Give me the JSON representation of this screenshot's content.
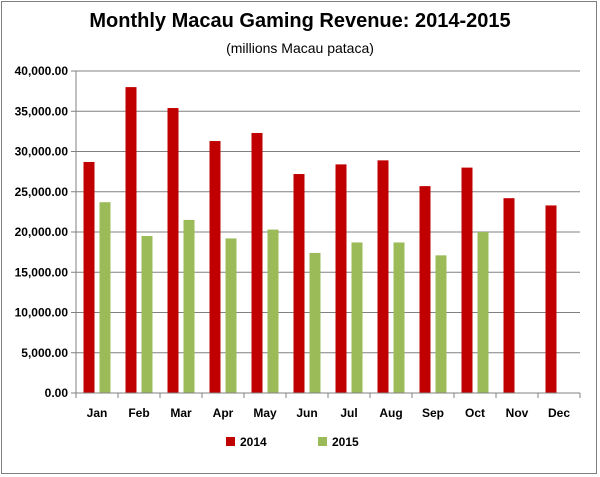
{
  "chart_data": {
    "type": "bar",
    "title": "Monthly Macau Gaming Revenue: 2014-2015",
    "subtitle": "(millions Macau pataca)",
    "xlabel": "",
    "ylabel": "",
    "categories": [
      "Jan",
      "Feb",
      "Mar",
      "Apr",
      "May",
      "Jun",
      "Jul",
      "Aug",
      "Sep",
      "Oct",
      "Nov",
      "Dec"
    ],
    "series": [
      {
        "name": "2014",
        "color": "#c00000",
        "values": [
          28700,
          38000,
          35400,
          31300,
          32300,
          27200,
          28400,
          28900,
          25700,
          28000,
          24200,
          23300
        ]
      },
      {
        "name": "2015",
        "color": "#9bbb59",
        "values": [
          23700,
          19500,
          21500,
          19200,
          20300,
          17400,
          18700,
          18700,
          17100,
          20000,
          null,
          null
        ]
      }
    ],
    "ylim": [
      0,
      40000
    ],
    "yticks": [
      0,
      5000,
      10000,
      15000,
      20000,
      25000,
      30000,
      35000,
      40000
    ],
    "ytick_labels": [
      "0.00",
      "5,000.00",
      "10,000.00",
      "15,000.00",
      "20,000.00",
      "25,000.00",
      "30,000.00",
      "35,000.00",
      "40,000.00"
    ],
    "grid": true,
    "legend_position": "bottom"
  }
}
